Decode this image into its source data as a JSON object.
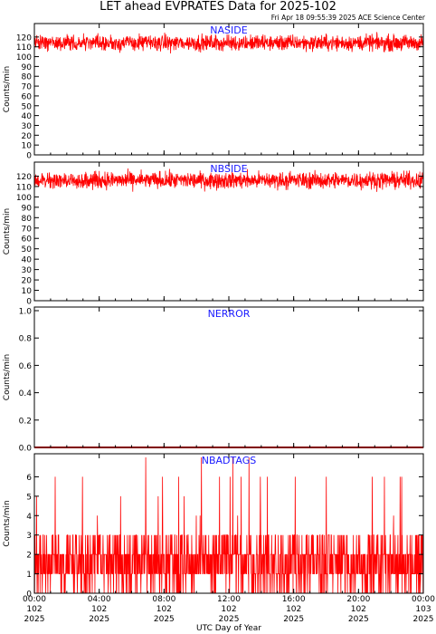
{
  "title": "LET ahead EVPRATES Data for 2025-102",
  "timestamp": "Fri Apr 18 09:55:39 2025 ACE Science Center",
  "xlabel": "UTC Day of Year",
  "colors": {
    "series": "#ff0000",
    "panel_label": "#1a1aff",
    "axes": "#000000"
  },
  "chart_data": [
    {
      "type": "line",
      "panel_label": "NASIDE",
      "ylabel": "Counts/min",
      "ylim": [
        0,
        130
      ],
      "yticks": [
        0,
        10,
        20,
        30,
        40,
        50,
        60,
        70,
        80,
        90,
        100,
        110,
        120
      ],
      "xlim": [
        0,
        24
      ],
      "series": [
        {
          "pattern": "noise",
          "mean": 114,
          "min": 95,
          "max": 128,
          "points": 1440
        }
      ]
    },
    {
      "type": "line",
      "panel_label": "NBSIDE",
      "ylabel": "Counts/min",
      "ylim": [
        0,
        130
      ],
      "yticks": [
        0,
        10,
        20,
        30,
        40,
        50,
        60,
        70,
        80,
        90,
        100,
        110,
        120
      ],
      "xlim": [
        0,
        24
      ],
      "series": [
        {
          "pattern": "noise",
          "mean": 116,
          "min": 100,
          "max": 130,
          "points": 1440
        }
      ]
    },
    {
      "type": "line",
      "panel_label": "NERROR",
      "ylabel": "Counts/min",
      "ylim": [
        0,
        1.0
      ],
      "yticks": [
        0.0,
        0.2,
        0.4,
        0.6,
        0.8,
        1.0
      ],
      "xlim": [
        0,
        24
      ],
      "series": [
        {
          "pattern": "constant",
          "value": 0,
          "points": 1440
        }
      ]
    },
    {
      "type": "line",
      "panel_label": "NBADTAGS",
      "ylabel": "Counts/min",
      "ylim": [
        0,
        7
      ],
      "yticks": [
        0,
        1,
        2,
        3,
        4,
        5,
        6
      ],
      "xlim": [
        0,
        24
      ],
      "series": [
        {
          "pattern": "counts",
          "mean": 1.6,
          "min": 0,
          "max": 7,
          "points": 1440
        }
      ]
    }
  ],
  "x_ticks": [
    {
      "time": "00:00",
      "doy": "102",
      "year": "2025"
    },
    {
      "time": "04:00",
      "doy": "102",
      "year": "2025"
    },
    {
      "time": "08:00",
      "doy": "102",
      "year": "2025"
    },
    {
      "time": "12:00",
      "doy": "102",
      "year": "2025"
    },
    {
      "time": "16:00",
      "doy": "102",
      "year": "2025"
    },
    {
      "time": "20:00",
      "doy": "102",
      "year": "2025"
    },
    {
      "time": "00:00",
      "doy": "103",
      "year": "2025"
    }
  ]
}
